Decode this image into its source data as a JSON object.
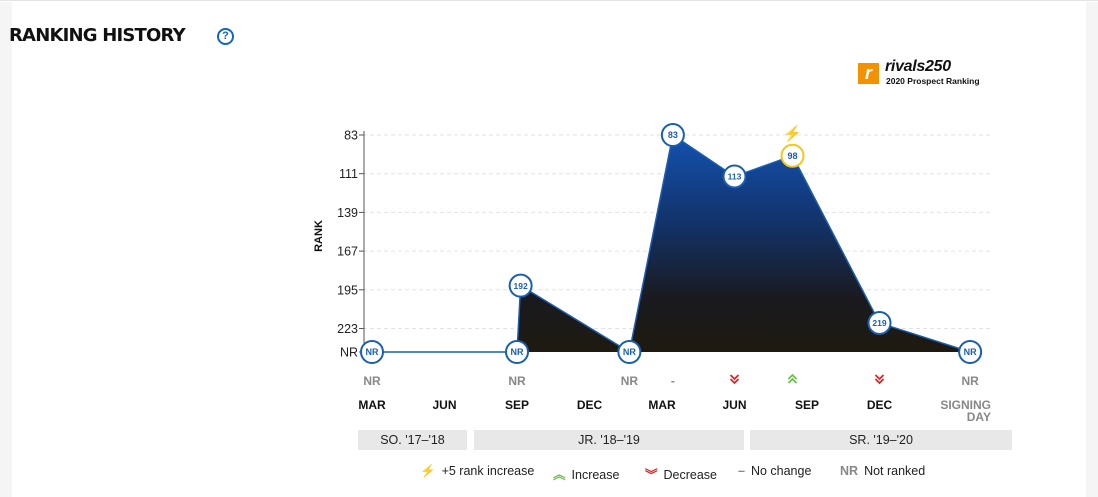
{
  "title": "RANKING HISTORY",
  "help_icon": "?",
  "logo": {
    "brand": "rivals250",
    "mark": "r",
    "subtitle": "2020 Prospect Ranking"
  },
  "colors": {
    "blue": "#1a5eb0",
    "dark": "#1c1710",
    "yellow": "#f5c518",
    "green": "#6cc04a",
    "red": "#d62828",
    "gray": "#888888"
  },
  "chart_data": {
    "type": "area",
    "ylabel": "RANK",
    "y_ticks": [
      "83",
      "111",
      "139",
      "167",
      "195",
      "223",
      "NR"
    ],
    "ylim": [
      83,
      240
    ],
    "nr_value": 240,
    "x_months": [
      "MAR",
      "JUN",
      "SEP",
      "DEC",
      "MAR",
      "JUN",
      "SEP",
      "DEC",
      "SIGNING DAY"
    ],
    "points": [
      {
        "x": 0,
        "label": "NR",
        "rank": null
      },
      {
        "x": 2,
        "label": "NR",
        "rank": null
      },
      {
        "x": 2.05,
        "label": "192",
        "rank": 192
      },
      {
        "x": 3.55,
        "label": "NR",
        "rank": null
      },
      {
        "x": 4.15,
        "label": "83",
        "rank": 83
      },
      {
        "x": 5,
        "label": "113",
        "rank": 113
      },
      {
        "x": 5.8,
        "label": "98",
        "rank": 98,
        "highlight": "+5 rank increase"
      },
      {
        "x": 7,
        "label": "219",
        "rank": 219
      },
      {
        "x": 8.25,
        "label": "NR",
        "rank": null
      }
    ],
    "changes": [
      {
        "x": 0,
        "type": "nr",
        "text": "NR"
      },
      {
        "x": 2,
        "type": "nr",
        "text": "NR"
      },
      {
        "x": 3.55,
        "type": "nr",
        "text": "NR"
      },
      {
        "x": 4.15,
        "type": "none",
        "text": "-"
      },
      {
        "x": 5,
        "type": "decrease",
        "text": ""
      },
      {
        "x": 5.8,
        "type": "increase",
        "text": ""
      },
      {
        "x": 7,
        "type": "decrease",
        "text": ""
      },
      {
        "x": 8.25,
        "type": "nr",
        "text": "NR"
      }
    ]
  },
  "seasons": [
    "SO. '17–'18",
    "JR. '18–'19",
    "SR. '19–'20"
  ],
  "legend": {
    "bolt": "+5 rank increase",
    "increase": "Increase",
    "decrease": "Decrease",
    "nochange_sym": "–",
    "nochange": "No change",
    "nr_sym": "NR",
    "nr": "Not ranked"
  }
}
